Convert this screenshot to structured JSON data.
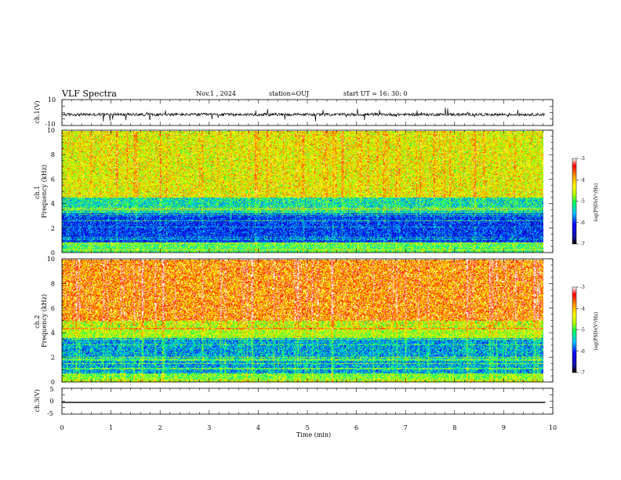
{
  "header": {
    "title": "VLF Spectra",
    "date": "Nov.1  , 2024",
    "station": "station=OUJ",
    "start_ut": "start  UT  =   16: 30: 0"
  },
  "chart_data": [
    {
      "type": "line",
      "panel": "ch1-waveform",
      "ylabel": "ch.1(V)",
      "ylim": [
        -10,
        10
      ],
      "yticks": [
        "10",
        "-10"
      ],
      "baseline": -1.5,
      "trace_color": "#000000"
    },
    {
      "type": "heatmap",
      "panel": "ch1-spectrogram",
      "ylabel": "ch.1\nFrequency (kHz)",
      "ylim": [
        0,
        10
      ],
      "yticks": [
        "0",
        "2",
        "4",
        "6",
        "8",
        "10"
      ],
      "xlim": [
        0,
        9.85
      ],
      "colorbar": {
        "label": "log(PSD)(V²/Hz)",
        "range": [
          -7,
          -3
        ],
        "ticks": [
          "-3",
          "-4",
          "-5",
          "-6",
          "-7"
        ]
      },
      "bands": [
        {
          "from_khz": 0.0,
          "to_khz": 0.8,
          "log_psd": -5.0
        },
        {
          "from_khz": 0.8,
          "to_khz": 3.2,
          "log_psd": -6.1
        },
        {
          "from_khz": 3.2,
          "to_khz": 4.5,
          "log_psd": -5.3
        },
        {
          "from_khz": 4.5,
          "to_khz": 10.0,
          "log_psd": -4.4
        }
      ]
    },
    {
      "type": "heatmap",
      "panel": "ch2-spectrogram",
      "ylabel": "ch.2\nFrequency (kHz)",
      "ylim": [
        0,
        10
      ],
      "yticks": [
        "0",
        "2",
        "4",
        "6",
        "8",
        "10"
      ],
      "xlim": [
        0,
        9.85
      ],
      "colorbar": {
        "label": "log(PSD)(V²/Hz)",
        "range": [
          -7,
          -3
        ],
        "ticks": [
          "-3",
          "-4",
          "-5",
          "-6",
          "-7"
        ]
      },
      "bands": [
        {
          "from_khz": 0.0,
          "to_khz": 0.6,
          "log_psd": -4.8
        },
        {
          "from_khz": 0.6,
          "to_khz": 3.6,
          "log_psd": -5.6
        },
        {
          "from_khz": 3.6,
          "to_khz": 5.0,
          "log_psd": -4.6
        },
        {
          "from_khz": 5.0,
          "to_khz": 10.0,
          "log_psd": -3.9
        }
      ]
    },
    {
      "type": "line",
      "panel": "ch3-waveform",
      "ylabel": "ch.3(V)",
      "ylim": [
        -5,
        5
      ],
      "yticks": [
        "5",
        "0",
        "-5"
      ],
      "baseline": -0.5,
      "trace_color": "#000000"
    }
  ],
  "xaxis": {
    "label": "Time  (min)",
    "xlim": [
      0,
      10
    ],
    "ticks": [
      "0",
      "1",
      "2",
      "3",
      "4",
      "5",
      "6",
      "7",
      "8",
      "9",
      "10"
    ]
  },
  "colors": {
    "colormap": [
      "#000000",
      "#1414a0",
      "#0000ff",
      "#00c8ff",
      "#00ff64",
      "#b4ff00",
      "#ffff00",
      "#ff9600",
      "#ff0000",
      "#ffffff"
    ],
    "frame": "#000000"
  }
}
